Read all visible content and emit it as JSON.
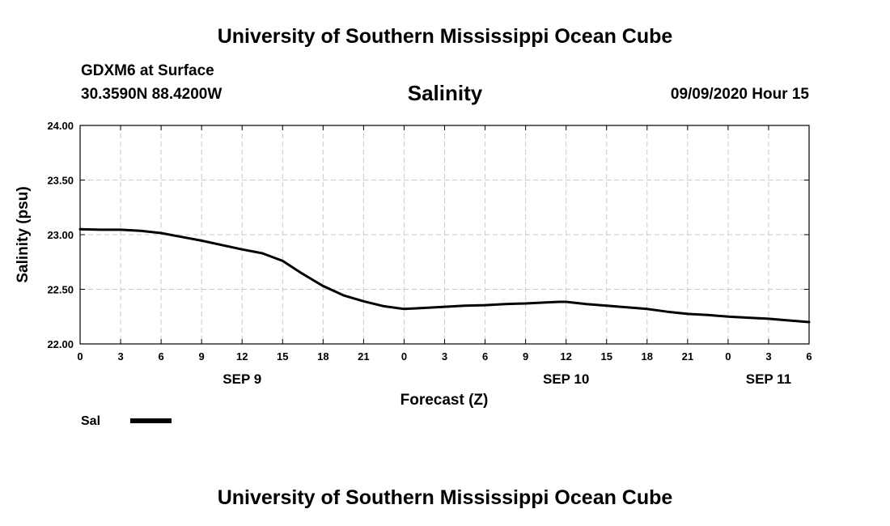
{
  "header": {
    "top_title": "University of Southern Mississippi Ocean Cube",
    "bottom_title": "University of Southern Mississippi Ocean Cube",
    "station": "GDXM6 at Surface",
    "coords": "30.3590N 88.4200W",
    "datetime": "09/09/2020 Hour 15"
  },
  "chart_data": {
    "type": "line",
    "title": "Salinity",
    "xlabel": "Forecast (Z)",
    "ylabel": "Salinity (psu)",
    "ylim": [
      22.0,
      24.0
    ],
    "xlim": [
      0,
      54
    ],
    "grid": true,
    "y_ticks": [
      "22.00",
      "22.50",
      "23.00",
      "23.50",
      "24.00"
    ],
    "y_tick_values": [
      22.0,
      22.5,
      23.0,
      23.5,
      24.0
    ],
    "x_tick_values": [
      0,
      3,
      6,
      9,
      12,
      15,
      18,
      21,
      24,
      27,
      30,
      33,
      36,
      39,
      42,
      45,
      48,
      51,
      54
    ],
    "x_tick_labels": [
      "0",
      "3",
      "6",
      "9",
      "12",
      "15",
      "18",
      "21",
      "0",
      "3",
      "6",
      "9",
      "12",
      "15",
      "18",
      "21",
      "0",
      "3",
      "6"
    ],
    "date_labels": [
      {
        "label": "SEP 9",
        "hour": 12
      },
      {
        "label": "SEP 10",
        "hour": 36
      },
      {
        "label": "SEP 11",
        "hour": 51
      }
    ],
    "series": [
      {
        "name": "Sal",
        "color": "#000000",
        "x": [
          0,
          1.5,
          3,
          4.5,
          6,
          7.5,
          9,
          10.5,
          12,
          13.5,
          15,
          16.5,
          18,
          19.5,
          21,
          22.5,
          24,
          25.5,
          27,
          28.5,
          30,
          31.5,
          33,
          34.5,
          35.5,
          36,
          37.5,
          39,
          40.5,
          42,
          43.5,
          45,
          46.5,
          48,
          49.5,
          51,
          52.5,
          54
        ],
        "values": [
          23.05,
          23.045,
          23.045,
          23.035,
          23.015,
          22.98,
          22.945,
          22.905,
          22.865,
          22.83,
          22.76,
          22.64,
          22.53,
          22.445,
          22.39,
          22.345,
          22.32,
          22.33,
          22.34,
          22.35,
          22.355,
          22.365,
          22.37,
          22.38,
          22.385,
          22.385,
          22.365,
          22.35,
          22.335,
          22.32,
          22.295,
          22.275,
          22.265,
          22.25,
          22.24,
          22.23,
          22.215,
          22.2
        ]
      }
    ]
  },
  "legend": {
    "entries": [
      {
        "label": "Sal",
        "color": "#000000"
      }
    ]
  }
}
